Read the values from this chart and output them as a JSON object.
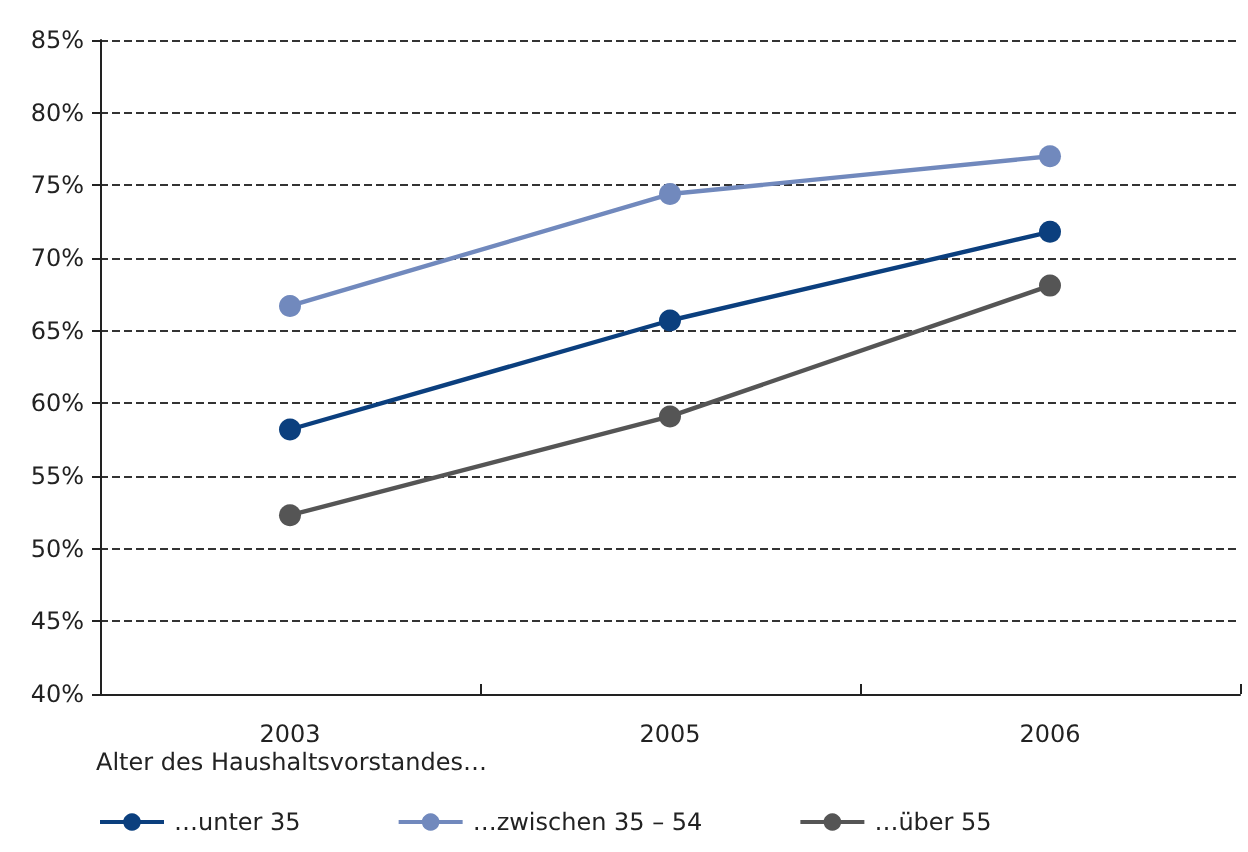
{
  "chart_data": {
    "type": "line",
    "categories": [
      "2003",
      "2005",
      "2006"
    ],
    "series": [
      {
        "name": "…unter 35",
        "color": "#0b3f7e",
        "values": [
          58.2,
          65.7,
          71.8
        ]
      },
      {
        "name": "…zwischen 35 – 54",
        "color": "#7189bd",
        "values": [
          66.7,
          74.4,
          77.0
        ]
      },
      {
        "name": "…über 55",
        "color": "#555555",
        "values": [
          52.3,
          59.1,
          68.1
        ]
      }
    ],
    "ylim": [
      40,
      85
    ],
    "yticks": [
      {
        "value": 40,
        "label": "40%"
      },
      {
        "value": 45,
        "label": "45%"
      },
      {
        "value": 50,
        "label": "50%"
      },
      {
        "value": 55,
        "label": "55%"
      },
      {
        "value": 60,
        "label": "60%"
      },
      {
        "value": 65,
        "label": "65%"
      },
      {
        "value": 70,
        "label": "70%"
      },
      {
        "value": 75,
        "label": "75%"
      },
      {
        "value": 80,
        "label": "80%"
      },
      {
        "value": 85,
        "label": "85%"
      }
    ],
    "grid": "y",
    "legend": "bottom left",
    "legend_title": "Alter des Haushaltsvorstandes…",
    "marker": "circle",
    "line_style": "solid"
  }
}
